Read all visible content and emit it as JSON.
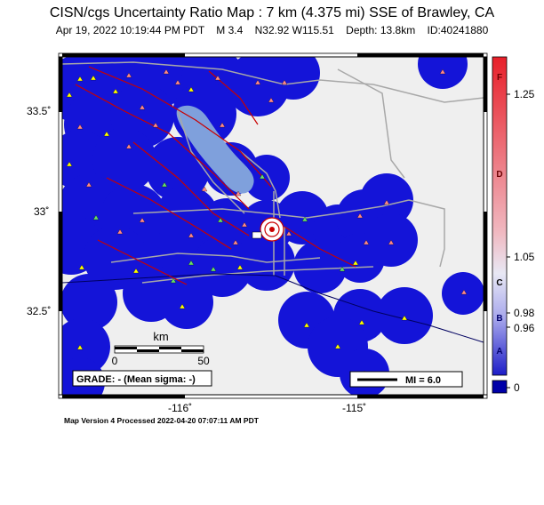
{
  "title": "CISN/cgs Uncertainty Ratio Map : 7 km (4.375 mi) SSE of Brawley, CA",
  "subtitle": {
    "datetime": "Apr 19, 2022 10:19:44 PM PDT",
    "magnitude": "M 3.4",
    "location": "N32.92 W115.51",
    "depth": "Depth: 13.8km",
    "event_id": "ID:40241880"
  },
  "footer": "Map Version 4 Processed 2022-04-20 07:07:11 AM PDT",
  "axes": {
    "lat_labels": [
      "33.5˚",
      "33˚",
      "32.5˚"
    ],
    "lon_labels": [
      "-116˚",
      "-115˚"
    ]
  },
  "scale_bar": {
    "unit": "km",
    "min_label": "0",
    "max_label": "50"
  },
  "grade_text": "GRADE: - (Mean sigma: -)",
  "legend_mi": "MI = 6.0",
  "colorbar": {
    "letters": [
      "F",
      "D",
      "C",
      "B",
      "A"
    ],
    "values": [
      "1.25",
      "1.05",
      "0.98",
      "0.96",
      "0"
    ],
    "colors": {
      "top": "#e8202a",
      "middle": "#e8e8f4",
      "bottom": "#1d1dc8",
      "zero": "#0000a8"
    }
  },
  "map_colors": {
    "background": "#efefef",
    "coverage": "#1414d8",
    "lake": "#7fa0dc",
    "fault": "#c80000",
    "road": "#a8a8a8",
    "station_yellow": "#ffff00",
    "station_green": "#66dd66",
    "station_pink": "#ff8888"
  }
}
